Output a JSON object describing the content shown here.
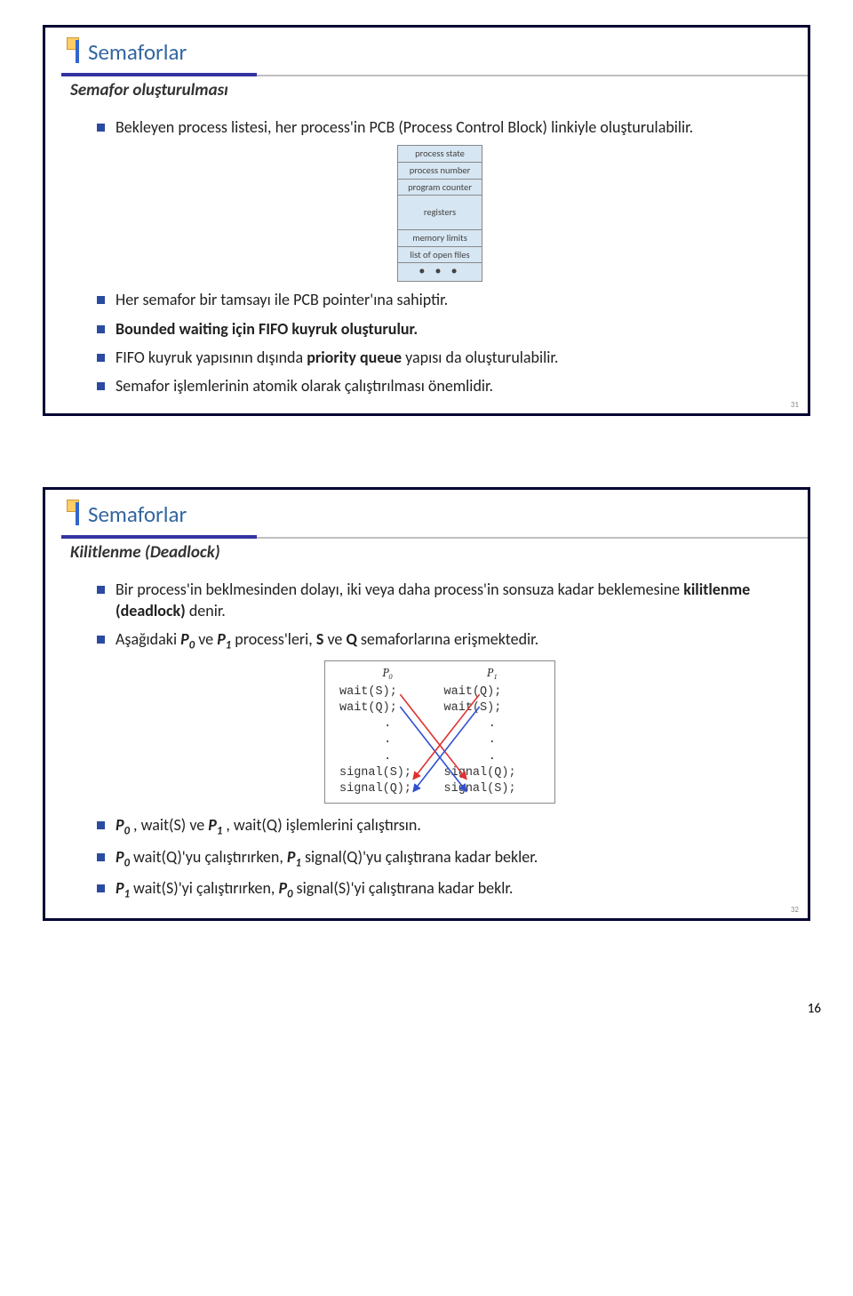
{
  "doc_page_number": "16",
  "slide1": {
    "page_num": "31",
    "title": "Semaforlar",
    "subtitle": "Semafor oluşturulması",
    "bullets": [
      [
        [
          "t",
          "Bekleyen process listesi, her process'in PCB (Process Control Block) linkiyle oluşturulabilir."
        ]
      ],
      [
        [
          "t",
          "Her semafor bir tamsayı ile PCB pointer'ına sahiptir."
        ]
      ],
      [
        [
          "b",
          "Bounded waiting için FIFO kuyruk oluşturulur."
        ]
      ],
      [
        [
          "t",
          "FIFO kuyruk yapısının dışında "
        ],
        [
          "b",
          "priority queue"
        ],
        [
          "t",
          " yapısı da oluşturulabilir."
        ]
      ],
      [
        [
          "t",
          "Semafor işlemlerinin atomik olarak çalıştırılması önemlidir."
        ]
      ]
    ],
    "pcb_rows": [
      "process state",
      "process number",
      "program counter",
      "registers",
      "memory limits",
      "list of open files",
      "• • •"
    ]
  },
  "slide2": {
    "page_num": "32",
    "title": "Semaforlar",
    "subtitle": "Kilitlenme (Deadlock)",
    "bullet1_pre": "Bir process'in beklmesinden dolayı, iki veya daha process'in sonsuza kadar beklemesine ",
    "bullet1_term": "kilitlenme (deadlock)",
    "bullet1_post": " denir.",
    "bullet2_a": "Aşağıdaki ",
    "bullet2_p0": "P",
    "bullet2_b": " ve ",
    "bullet2_p1": "P",
    "bullet2_c": " process'leri, ",
    "bullet2_s": "S",
    "bullet2_d": " ve ",
    "bullet2_q": "Q",
    "bullet2_e": " semaforlarına erişmektedir.",
    "deadlock": {
      "head0": "P₀",
      "head1": "P₁",
      "c0": [
        "wait(S);",
        "wait(Q);",
        ".",
        ".",
        ".",
        "signal(S);",
        "signal(Q);"
      ],
      "c1": [
        "wait(Q);",
        "wait(S);",
        ".",
        ".",
        ".",
        "signal(Q);",
        "signal(S);"
      ],
      "line_colors": {
        "red": "#e03030",
        "blue": "#3050d0"
      }
    },
    "bullet3_a": "P",
    "bullet3_b": " , wait(S) ve ",
    "bullet3_c": "P",
    "bullet3_d": " , wait(Q) işlemlerini çalıştırsın.",
    "bullet4_a": "P",
    "bullet4_b": " wait(Q)'yu çalıştırırken, ",
    "bullet4_c": "P",
    "bullet4_d": " signal(Q)'yu çalıştırana kadar bekler.",
    "bullet5_a": "P",
    "bullet5_b": " wait(S)'yi çalıştırırken, ",
    "bullet5_c": "P",
    "bullet5_d": " signal(S)'yi çalıştırana kadar beklr."
  }
}
